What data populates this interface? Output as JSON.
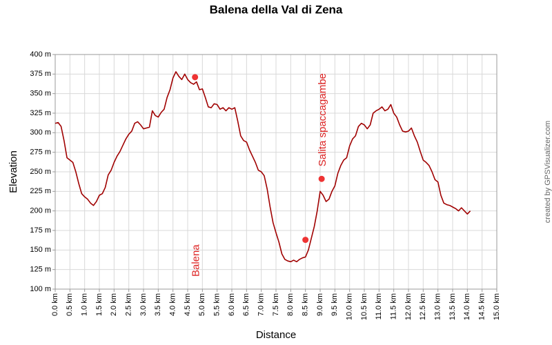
{
  "chart_data": {
    "type": "line",
    "title": "Balena della Val di Zena",
    "x_label": "Distance",
    "y_label": "Elevation",
    "credit": "created by GPSVisualizer.com",
    "grid": true,
    "x": [
      0,
      0.1,
      0.2,
      0.3,
      0.4,
      0.5,
      0.6,
      0.7,
      0.8,
      0.9,
      1,
      1.1,
      1.2,
      1.3,
      1.4,
      1.5,
      1.6,
      1.7,
      1.8,
      1.9,
      2,
      2.1,
      2.2,
      2.3,
      2.4,
      2.5,
      2.6,
      2.7,
      2.8,
      2.9,
      3,
      3.1,
      3.2,
      3.3,
      3.4,
      3.5,
      3.6,
      3.7,
      3.8,
      3.9,
      4,
      4.1,
      4.2,
      4.3,
      4.4,
      4.5,
      4.6,
      4.7,
      4.8,
      4.9,
      5,
      5.1,
      5.2,
      5.3,
      5.4,
      5.5,
      5.6,
      5.7,
      5.8,
      5.9,
      6,
      6.1,
      6.2,
      6.3,
      6.4,
      6.5,
      6.6,
      6.7,
      6.8,
      6.9,
      7,
      7.1,
      7.2,
      7.3,
      7.4,
      7.5,
      7.6,
      7.7,
      7.8,
      7.9,
      8,
      8.1,
      8.2,
      8.3,
      8.4,
      8.5,
      8.6,
      8.7,
      8.8,
      8.9,
      9,
      9.1,
      9.2,
      9.3,
      9.4,
      9.5,
      9.6,
      9.7,
      9.8,
      9.9,
      10,
      10.1,
      10.2,
      10.3,
      10.4,
      10.5,
      10.6,
      10.7,
      10.8,
      10.9,
      11,
      11.1,
      11.2,
      11.3,
      11.4,
      11.5,
      11.6,
      11.7,
      11.8,
      11.9,
      12,
      12.1,
      12.2,
      12.3,
      12.4,
      12.5,
      12.6,
      12.7,
      12.8,
      12.9,
      13,
      13.1,
      13.2,
      13.3,
      13.4,
      13.5,
      13.6,
      13.7,
      13.8,
      13.9,
      14,
      14.1
    ],
    "series": [
      {
        "color": "#a00000",
        "values": [
          312,
          313,
          308,
          290,
          268,
          265,
          262,
          250,
          235,
          222,
          218,
          215,
          210,
          207,
          212,
          220,
          222,
          230,
          246,
          252,
          262,
          270,
          276,
          284,
          292,
          298,
          302,
          312,
          314,
          310,
          305,
          306,
          307,
          328,
          322,
          320,
          326,
          330,
          345,
          355,
          370,
          378,
          372,
          368,
          375,
          368,
          364,
          362,
          365,
          355,
          356,
          345,
          333,
          332,
          337,
          336,
          330,
          332,
          328,
          332,
          330,
          332,
          315,
          296,
          290,
          288,
          278,
          270,
          262,
          252,
          250,
          245,
          228,
          205,
          185,
          172,
          160,
          145,
          138,
          136,
          135,
          137,
          135,
          138,
          140,
          141,
          150,
          165,
          180,
          200,
          225,
          220,
          212,
          215,
          225,
          232,
          248,
          258,
          265,
          268,
          283,
          292,
          296,
          308,
          312,
          310,
          305,
          310,
          325,
          328,
          330,
          333,
          328,
          330,
          336,
          325,
          320,
          310,
          302,
          301,
          302,
          306,
          296,
          288,
          276,
          265,
          262,
          258,
          250,
          240,
          237,
          220,
          210,
          208,
          207,
          205,
          203,
          200,
          204,
          200,
          196,
          200
        ]
      }
    ],
    "waypoints": {
      "color": "#ee3333",
      "x": [
        4.75,
        8.5,
        9.05
      ],
      "values": [
        371,
        163,
        241
      ],
      "labels": [
        "Balena",
        null,
        "Salita spaccagambe"
      ]
    },
    "xlim": [
      0,
      15
    ],
    "ylim": [
      100,
      400
    ],
    "xticks": [
      {
        "value": 0,
        "label": "0.0 km"
      },
      {
        "value": 0.5,
        "label": "0.5 km"
      },
      {
        "value": 1,
        "label": "1.0 km"
      },
      {
        "value": 1.5,
        "label": "1.5 km"
      },
      {
        "value": 2,
        "label": "2.0 km"
      },
      {
        "value": 2.5,
        "label": "2.5 km"
      },
      {
        "value": 3,
        "label": "3.0 km"
      },
      {
        "value": 3.5,
        "label": "3.5 km"
      },
      {
        "value": 4,
        "label": "4.0 km"
      },
      {
        "value": 4.5,
        "label": "4.5 km"
      },
      {
        "value": 5,
        "label": "5.0 km"
      },
      {
        "value": 5.5,
        "label": "5.5 km"
      },
      {
        "value": 6,
        "label": "6.0 km"
      },
      {
        "value": 6.5,
        "label": "6.5 km"
      },
      {
        "value": 7,
        "label": "7.0 km"
      },
      {
        "value": 7.5,
        "label": "7.5 km"
      },
      {
        "value": 8,
        "label": "8.0 km"
      },
      {
        "value": 8.5,
        "label": "8.5 km"
      },
      {
        "value": 9,
        "label": "9.0 km"
      },
      {
        "value": 9.5,
        "label": "9.5 km"
      },
      {
        "value": 10,
        "label": "10.0 km"
      },
      {
        "value": 10.5,
        "label": "10.5 km"
      },
      {
        "value": 11,
        "label": "11.0 km"
      },
      {
        "value": 11.5,
        "label": "11.5 km"
      },
      {
        "value": 12,
        "label": "12.0 km"
      },
      {
        "value": 12.5,
        "label": "12.5 km"
      },
      {
        "value": 13,
        "label": "13.0 km"
      },
      {
        "value": 13.5,
        "label": "13.5 km"
      },
      {
        "value": 14,
        "label": "14.0 km"
      },
      {
        "value": 14.5,
        "label": "14.5 km"
      },
      {
        "value": 15,
        "label": "15.0 km"
      }
    ],
    "yticks": [
      {
        "value": 100,
        "label": "100 m"
      },
      {
        "value": 125,
        "label": "125 m"
      },
      {
        "value": 150,
        "label": "150 m"
      },
      {
        "value": 175,
        "label": "175 m"
      },
      {
        "value": 200,
        "label": "200 m"
      },
      {
        "value": 225,
        "label": "225 m"
      },
      {
        "value": 250,
        "label": "250 m"
      },
      {
        "value": 275,
        "label": "275 m"
      },
      {
        "value": 300,
        "label": "300 m"
      },
      {
        "value": 325,
        "label": "325 m"
      },
      {
        "value": 350,
        "label": "350 m"
      },
      {
        "value": 375,
        "label": "375 m"
      },
      {
        "value": 400,
        "label": "400 m"
      }
    ]
  }
}
